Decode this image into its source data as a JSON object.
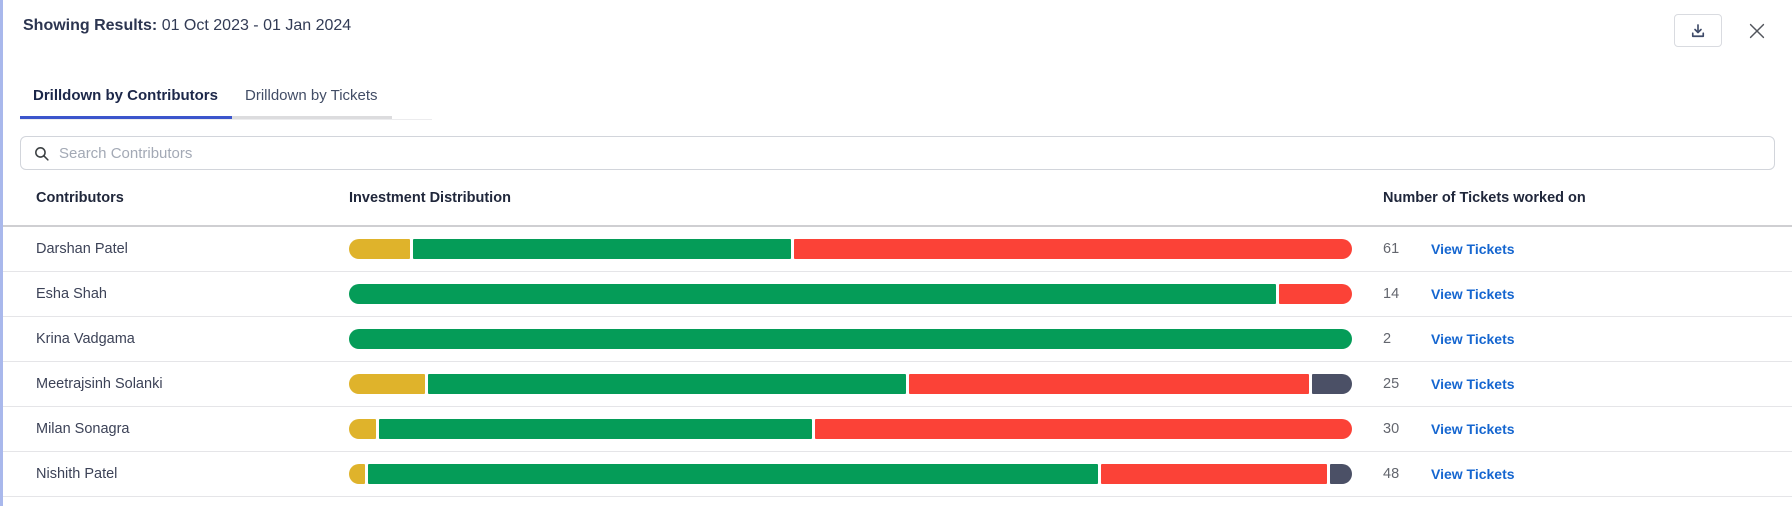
{
  "header": {
    "label": "Showing Results:",
    "value": "01 Oct 2023 - 01 Jan 2024"
  },
  "tabs": [
    {
      "label": "Drilldown by Contributors",
      "active": true
    },
    {
      "label": "Drilldown by Tickets",
      "active": false
    }
  ],
  "search": {
    "placeholder": "Search Contributors",
    "value": ""
  },
  "table": {
    "columns": [
      "Contributors",
      "Investment Distribution",
      "Number of Tickets worked on"
    ],
    "link_label": "View Tickets",
    "rows": [
      {
        "name": "Darshan Patel",
        "tickets": "61",
        "segments": [
          {
            "color": "yellow",
            "pct": 6.1
          },
          {
            "color": "green",
            "pct": 37.6
          },
          {
            "color": "red",
            "pct": 55.6
          }
        ]
      },
      {
        "name": "Esha Shah",
        "tickets": "14",
        "segments": [
          {
            "color": "green",
            "pct": 92.7
          },
          {
            "color": "red",
            "pct": 7.3
          }
        ]
      },
      {
        "name": "Krina Vadgama",
        "tickets": "2",
        "segments": [
          {
            "color": "green",
            "pct": 100
          }
        ]
      },
      {
        "name": "Meetrajsinh Solanki",
        "tickets": "25",
        "segments": [
          {
            "color": "yellow",
            "pct": 7.6
          },
          {
            "color": "green",
            "pct": 47.9
          },
          {
            "color": "red",
            "pct": 40.0
          },
          {
            "color": "slate",
            "pct": 4.0
          }
        ]
      },
      {
        "name": "Milan Sonagra",
        "tickets": "30",
        "segments": [
          {
            "color": "yellow",
            "pct": 2.7
          },
          {
            "color": "green",
            "pct": 43.4
          },
          {
            "color": "red",
            "pct": 53.9
          }
        ]
      },
      {
        "name": "Nishith Patel",
        "tickets": "48",
        "segments": [
          {
            "color": "yellow",
            "pct": 1.6
          },
          {
            "color": "green",
            "pct": 73.1
          },
          {
            "color": "red",
            "pct": 22.6
          },
          {
            "color": "slate",
            "pct": 2.2
          }
        ]
      }
    ]
  },
  "colors": {
    "yellow": "#dfb32b",
    "green": "#059c58",
    "red": "#fb4237",
    "slate": "#4b5066",
    "accent_blue": "#3b55cc",
    "link_blue": "#1566d0",
    "left_stripe": "#a9b8ec"
  }
}
